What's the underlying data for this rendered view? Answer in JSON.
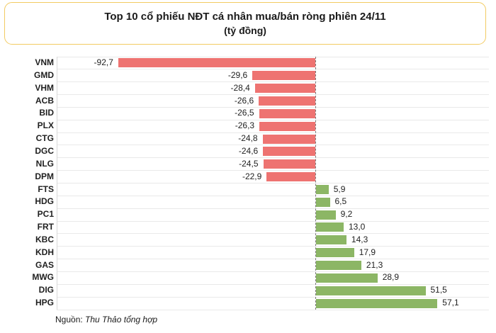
{
  "title": {
    "line1": "Top 10 cổ phiếu NĐT cá nhân mua/bán ròng phiên 24/11",
    "line2": "(tỷ đồng)"
  },
  "source": {
    "prefix": "Nguồn: ",
    "text": "Thu Thảo tổng hợp"
  },
  "colors": {
    "negative_bar": "#ee7371",
    "positive_bar": "#8cb665",
    "gridline": "#e9e9e9",
    "category_axis": "#d9d9d9",
    "zero_line": "#7a7a7a",
    "title_border": "#f2cb62",
    "text": "#1a1a1a"
  },
  "chart_data": {
    "type": "bar",
    "orientation": "horizontal",
    "title": "Top 10 cổ phiếu NĐT cá nhân mua/bán ròng phiên 24/11",
    "subtitle": "(tỷ đồng)",
    "unit": "tỷ đồng",
    "grid": true,
    "legend": false,
    "xlim": [
      -95,
      60
    ],
    "categories": [
      "VNM",
      "GMD",
      "VHM",
      "ACB",
      "BID",
      "PLX",
      "CTG",
      "DGC",
      "NLG",
      "DPM",
      "FTS",
      "HDG",
      "PC1",
      "FRT",
      "KBC",
      "KDH",
      "GAS",
      "MWG",
      "DIG",
      "HPG"
    ],
    "values": [
      -92.7,
      -29.6,
      -28.4,
      -26.6,
      -26.5,
      -26.3,
      -24.8,
      -24.6,
      -24.5,
      -22.9,
      5.9,
      6.5,
      9.2,
      13.0,
      14.3,
      17.9,
      21.3,
      28.9,
      51.5,
      57.1
    ],
    "value_labels": [
      "-92,7",
      "-29,6",
      "-28,4",
      "-26,6",
      "-26,5",
      "-26,3",
      "-24,8",
      "-24,6",
      "-24,5",
      "-22,9",
      "5,9",
      "6,5",
      "9,2",
      "13,0",
      "14,3",
      "17,9",
      "21,3",
      "28,9",
      "51,5",
      "57,1"
    ]
  }
}
